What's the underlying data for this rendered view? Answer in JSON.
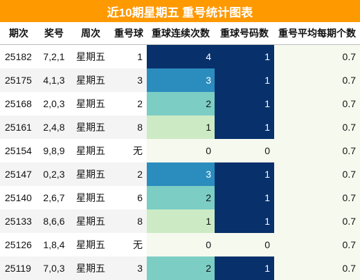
{
  "title": "近10期星期五 重号统计图表",
  "headers": {
    "period": "期次",
    "award": "奖号",
    "week": "周次",
    "repeat": "重号球",
    "consecutive": "重球连续次数",
    "count": "重球号码数",
    "avg": "重号平均每期个数"
  },
  "rows": [
    {
      "period": "25182",
      "award": "7,2,1",
      "week": "星期五",
      "repeat": "1",
      "consecutive": "4",
      "count": "1",
      "avg": "0.7"
    },
    {
      "period": "25175",
      "award": "4,1,3",
      "week": "星期五",
      "repeat": "3",
      "consecutive": "3",
      "count": "1",
      "avg": "0.7"
    },
    {
      "period": "25168",
      "award": "2,0,3",
      "week": "星期五",
      "repeat": "2",
      "consecutive": "2",
      "count": "1",
      "avg": "0.7"
    },
    {
      "period": "25161",
      "award": "2,4,8",
      "week": "星期五",
      "repeat": "8",
      "consecutive": "1",
      "count": "1",
      "avg": "0.7"
    },
    {
      "period": "25154",
      "award": "9,8,9",
      "week": "星期五",
      "repeat": "无",
      "consecutive": "0",
      "count": "0",
      "avg": "0.7"
    },
    {
      "period": "25147",
      "award": "0,2,3",
      "week": "星期五",
      "repeat": "2",
      "consecutive": "3",
      "count": "1",
      "avg": "0.7"
    },
    {
      "period": "25140",
      "award": "2,6,7",
      "week": "星期五",
      "repeat": "6",
      "consecutive": "2",
      "count": "1",
      "avg": "0.7"
    },
    {
      "period": "25133",
      "award": "8,6,6",
      "week": "星期五",
      "repeat": "8",
      "consecutive": "1",
      "count": "1",
      "avg": "0.7"
    },
    {
      "period": "25126",
      "award": "1,8,4",
      "week": "星期五",
      "repeat": "无",
      "consecutive": "0",
      "count": "0",
      "avg": "0.7"
    },
    {
      "period": "25119",
      "award": "7,0,3",
      "week": "星期五",
      "repeat": "3",
      "consecutive": "2",
      "count": "1",
      "avg": "0.7"
    }
  ],
  "colors": {
    "title_bg": "#ff9900",
    "level_4": "#08306b",
    "level_3": "#2b8cbe",
    "level_2": "#7ccdc4",
    "level_1": "#ccebc5",
    "level_0": "#f6f9ee"
  }
}
